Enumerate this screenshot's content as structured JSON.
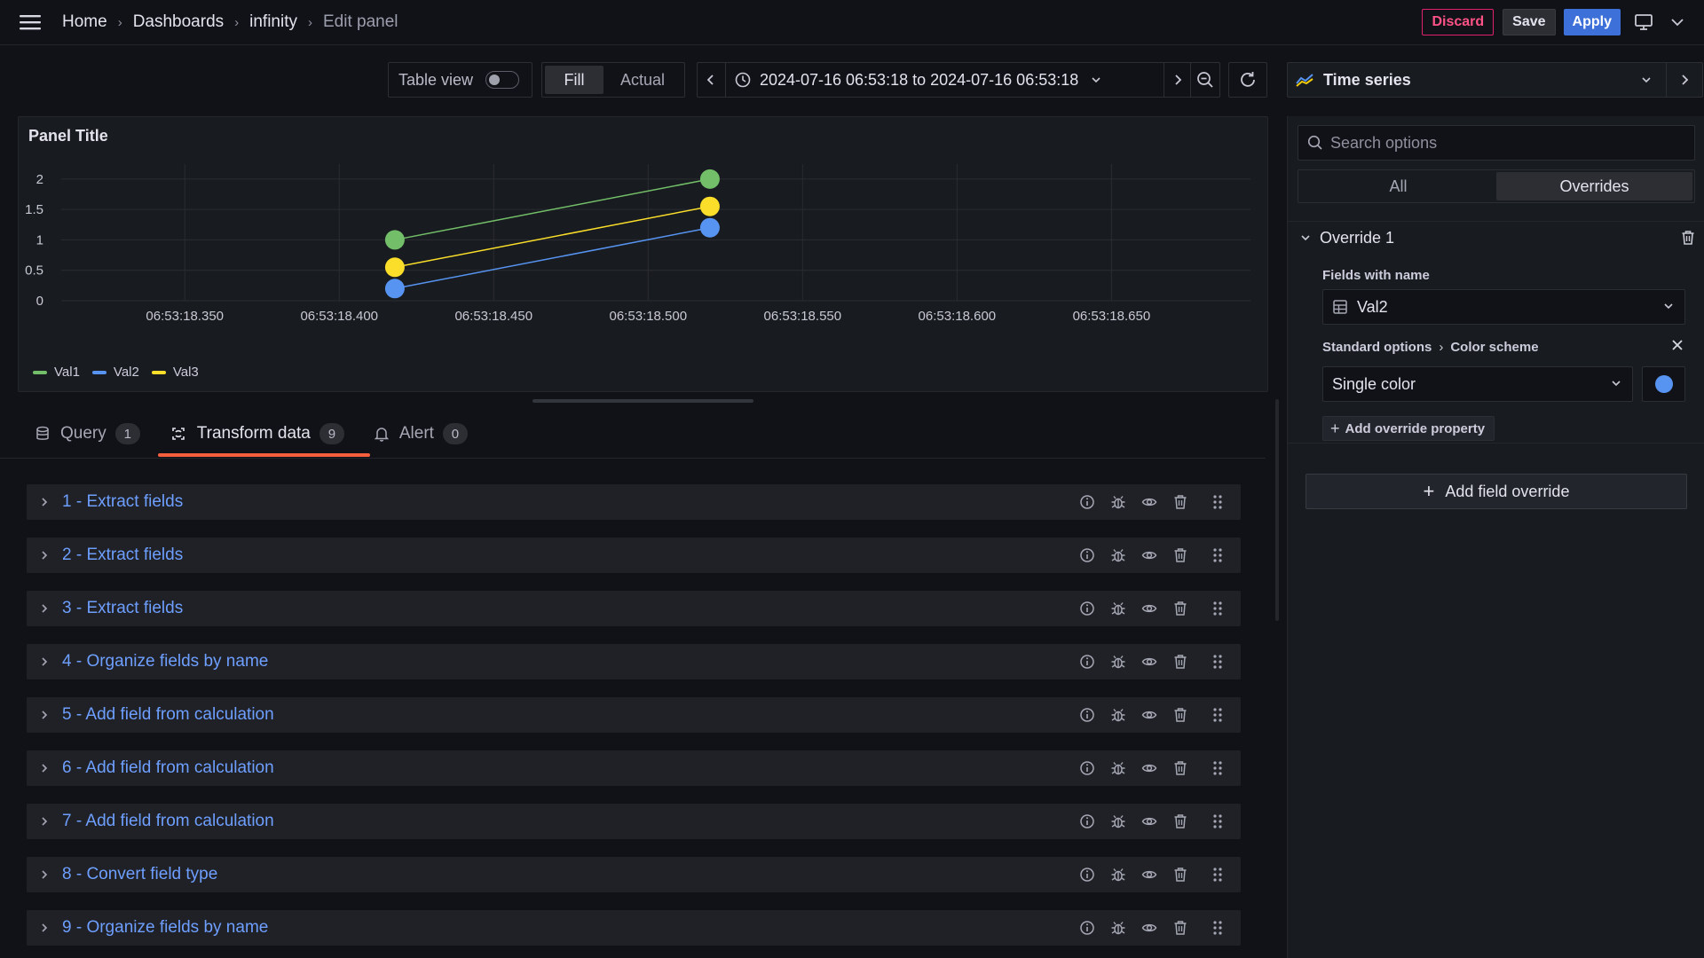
{
  "breadcrumb": {
    "items": [
      "Home",
      "Dashboards",
      "infinity"
    ],
    "current": "Edit panel"
  },
  "topbar": {
    "discard_label": "Discard",
    "save_label": "Save",
    "apply_label": "Apply"
  },
  "toolbar": {
    "table_view_label": "Table view",
    "table_view_on": false,
    "fill_label": "Fill",
    "actual_label": "Actual",
    "time_range": "2024-07-16 06:53:18 to 2024-07-16 06:53:18"
  },
  "viz_picker": {
    "name": "Time series"
  },
  "panel": {
    "title": "Panel Title"
  },
  "chart_data": {
    "type": "line",
    "title": "Panel Title",
    "xlabel": "",
    "ylabel": "",
    "x_tick_labels": [
      "06:53:18.350",
      "06:53:18.400",
      "06:53:18.450",
      "06:53:18.500",
      "06:53:18.550",
      "06:53:18.600",
      "06:53:18.650"
    ],
    "x_tick_values": [
      350,
      400,
      450,
      500,
      550,
      600,
      650
    ],
    "x_unit": "ms after 06:53:18",
    "xlim": [
      310,
      695
    ],
    "y_tick_labels": [
      "0",
      "0.5",
      "1",
      "1.5",
      "2"
    ],
    "y_tick_values": [
      0,
      0.5,
      1,
      1.5,
      2
    ],
    "ylim": [
      0,
      2.1
    ],
    "grid": true,
    "legend_position": "bottom-left",
    "series": [
      {
        "name": "Val1",
        "color": "#73bf69",
        "points": [
          [
            418,
            1.0
          ],
          [
            520,
            2.0
          ]
        ]
      },
      {
        "name": "Val2",
        "color": "#5794f2",
        "points": [
          [
            418,
            0.2
          ],
          [
            520,
            1.2
          ]
        ]
      },
      {
        "name": "Val3",
        "color": "#fade2a",
        "points": [
          [
            418,
            0.55
          ],
          [
            520,
            1.55
          ]
        ]
      }
    ]
  },
  "tabs": [
    {
      "label": "Query",
      "count": "1"
    },
    {
      "label": "Transform data",
      "count": "9"
    },
    {
      "label": "Alert",
      "count": "0"
    }
  ],
  "transformations": [
    "1 - Extract fields",
    "2 - Extract fields",
    "3 - Extract fields",
    "4 - Organize fields by name",
    "5 - Add field from calculation",
    "6 - Add field from calculation",
    "7 - Add field from calculation",
    "8 - Convert field type",
    "9 - Organize fields by name"
  ],
  "options": {
    "search_placeholder": "Search options",
    "tabs": [
      "All",
      "Overrides"
    ],
    "override": {
      "title": "Override 1",
      "matcher_label": "Fields with name",
      "matcher_value": "Val2",
      "property_path": [
        "Standard options",
        "Color scheme"
      ],
      "scheme_value": "Single color",
      "color": "#5794f2",
      "add_property_label": "Add override property"
    },
    "add_override_label": "Add field override"
  },
  "colors": {
    "accent": "#3d71d9",
    "tab_underline": "#f55f3e",
    "link": "#6e9fff",
    "discard": "#ff5286"
  }
}
